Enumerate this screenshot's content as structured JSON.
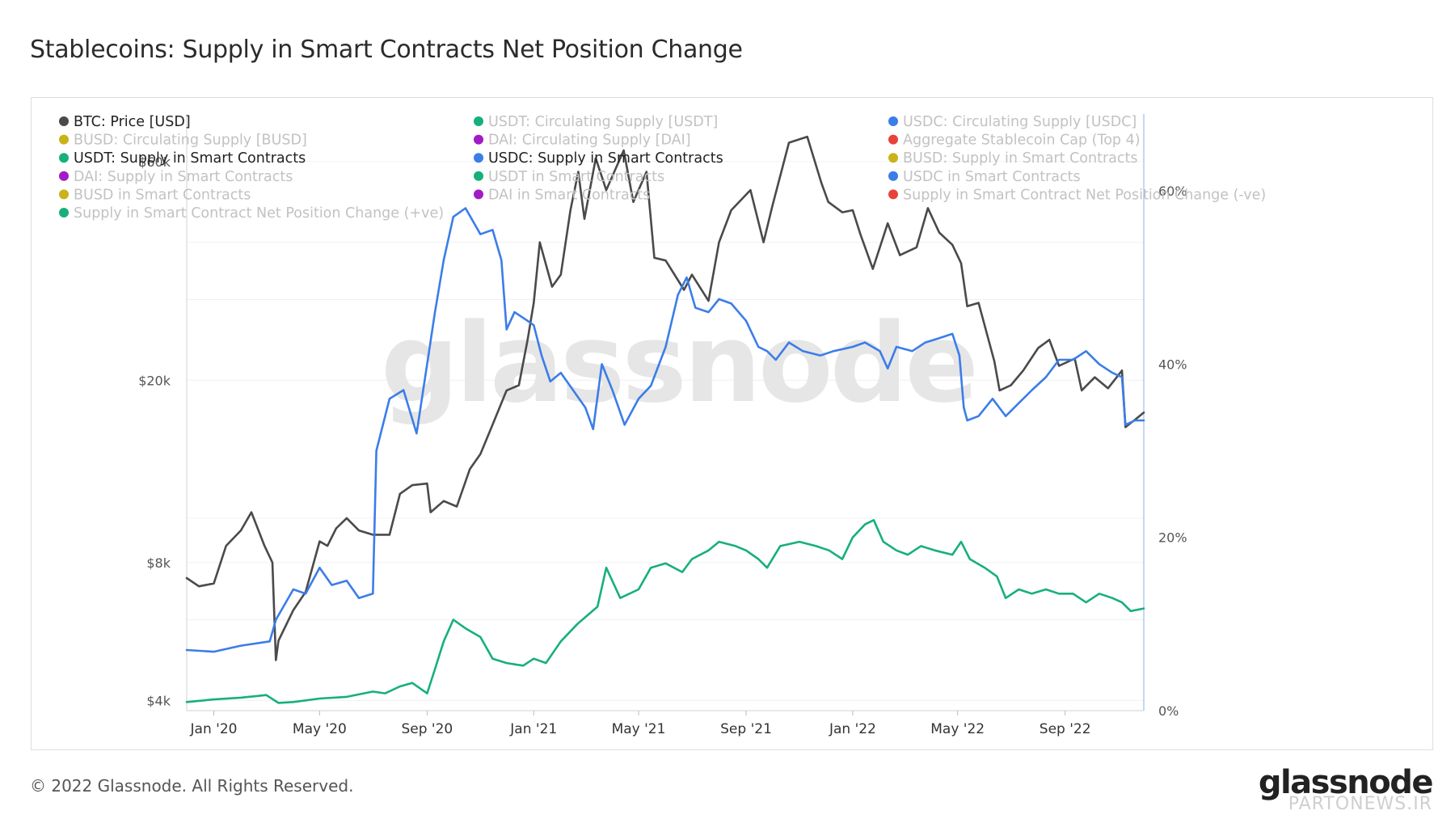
{
  "title": "Stablecoins: Supply in Smart Contracts Net Position Change",
  "footer": {
    "copyright": "© 2022 Glassnode. All Rights Reserved.",
    "logo": "glassnode",
    "credit": "PARTONEWS.IR"
  },
  "watermark": "glassnode",
  "colors": {
    "btc": "#4a4a4a",
    "usdc": "#3b7de9",
    "usdt": "#17b07a",
    "busd": "#c9b21a",
    "dai": "#a21cc4",
    "red": "#e8433a",
    "right_axis": "#8ab0f0"
  },
  "legend": [
    {
      "label": "BTC: Price [USD]",
      "color": "#4a4a4a",
      "active": true
    },
    {
      "label": "USDT: Circulating Supply [USDT]",
      "color": "#17b07a",
      "active": false
    },
    {
      "label": "USDC: Circulating Supply [USDC]",
      "color": "#3b7de9",
      "active": false
    },
    {
      "label": "BUSD: Circulating Supply [BUSD]",
      "color": "#c9b21a",
      "active": false
    },
    {
      "label": "DAI: Circulating Supply [DAI]",
      "color": "#a21cc4",
      "active": false
    },
    {
      "label": "Aggregate Stablecoin Cap (Top 4)",
      "color": "#e8433a",
      "active": false
    },
    {
      "label": "USDT: Supply in Smart Contracts",
      "color": "#17b07a",
      "active": true
    },
    {
      "label": "USDC: Supply in Smart Contracts",
      "color": "#3b7de9",
      "active": true
    },
    {
      "label": "BUSD: Supply in Smart Contracts",
      "color": "#c9b21a",
      "active": false
    },
    {
      "label": "DAI: Supply in Smart Contracts",
      "color": "#a21cc4",
      "active": false
    },
    {
      "label": "USDT in Smart Contracts",
      "color": "#17b07a",
      "active": false
    },
    {
      "label": "USDC in Smart Contracts",
      "color": "#3b7de9",
      "active": false
    },
    {
      "label": "BUSD in Smart Contracts",
      "color": "#c9b21a",
      "active": false
    },
    {
      "label": "DAI in Smart Contracts",
      "color": "#a21cc4",
      "active": false
    },
    {
      "label": "Supply in Smart Contract Net Position Change (-ve)",
      "color": "#e8433a",
      "active": false
    },
    {
      "label": "Supply in Smart Contract Net Position Change (+ve)",
      "color": "#17b07a",
      "active": false
    }
  ],
  "chart_data": {
    "type": "line",
    "x_ticks": [
      "Jan '20",
      "May '20",
      "Sep '20",
      "Jan '21",
      "May '21",
      "Sep '21",
      "Jan '22",
      "May '22",
      "Sep '22"
    ],
    "x_tick_dates": [
      "2020-01-01",
      "2020-05-01",
      "2020-09-01",
      "2021-01-01",
      "2021-05-01",
      "2021-09-01",
      "2022-01-01",
      "2022-05-01",
      "2022-09-01"
    ],
    "x_range": [
      "2019-12-01",
      "2022-11-30"
    ],
    "left_axis": {
      "scale": "log",
      "ticks": [
        4000,
        8000,
        20000,
        60000
      ],
      "tick_labels": [
        "$4k",
        "$8k",
        "$20k",
        "$60k"
      ],
      "range": [
        3800,
        75000
      ]
    },
    "right_axis": {
      "scale": "linear",
      "ticks": [
        0,
        20,
        40,
        60
      ],
      "tick_labels": [
        "0%",
        "20%",
        "40%",
        "60%"
      ],
      "range": [
        0,
        68.5
      ]
    },
    "grid": true,
    "series": [
      {
        "name": "BTC: Price [USD]",
        "axis": "left",
        "color": "#4a4a4a",
        "points": [
          [
            "2019-12-01",
            7400
          ],
          [
            "2019-12-15",
            7100
          ],
          [
            "2020-01-01",
            7200
          ],
          [
            "2020-01-15",
            8700
          ],
          [
            "2020-02-01",
            9400
          ],
          [
            "2020-02-13",
            10300
          ],
          [
            "2020-02-28",
            8700
          ],
          [
            "2020-03-08",
            8000
          ],
          [
            "2020-03-12",
            4900
          ],
          [
            "2020-03-15",
            5400
          ],
          [
            "2020-04-01",
            6300
          ],
          [
            "2020-04-15",
            6900
          ],
          [
            "2020-05-01",
            8900
          ],
          [
            "2020-05-10",
            8700
          ],
          [
            "2020-05-20",
            9500
          ],
          [
            "2020-06-01",
            10000
          ],
          [
            "2020-06-15",
            9400
          ],
          [
            "2020-07-01",
            9200
          ],
          [
            "2020-07-20",
            9200
          ],
          [
            "2020-08-01",
            11300
          ],
          [
            "2020-08-15",
            11800
          ],
          [
            "2020-09-01",
            11900
          ],
          [
            "2020-09-05",
            10300
          ],
          [
            "2020-09-20",
            10900
          ],
          [
            "2020-10-05",
            10600
          ],
          [
            "2020-10-20",
            12800
          ],
          [
            "2020-11-01",
            13800
          ],
          [
            "2020-11-15",
            16000
          ],
          [
            "2020-12-01",
            19000
          ],
          [
            "2020-12-15",
            19500
          ],
          [
            "2020-12-25",
            24500
          ],
          [
            "2021-01-01",
            29500
          ],
          [
            "2021-01-08",
            40000
          ],
          [
            "2021-01-22",
            32000
          ],
          [
            "2021-02-01",
            34000
          ],
          [
            "2021-02-12",
            47000
          ],
          [
            "2021-02-21",
            57000
          ],
          [
            "2021-02-28",
            45000
          ],
          [
            "2021-03-13",
            61000
          ],
          [
            "2021-03-25",
            52000
          ],
          [
            "2021-04-14",
            63500
          ],
          [
            "2021-04-25",
            49000
          ],
          [
            "2021-05-10",
            57000
          ],
          [
            "2021-05-19",
            37000
          ],
          [
            "2021-06-01",
            36500
          ],
          [
            "2021-06-22",
            31500
          ],
          [
            "2021-07-01",
            34000
          ],
          [
            "2021-07-20",
            29800
          ],
          [
            "2021-08-01",
            40000
          ],
          [
            "2021-08-15",
            47000
          ],
          [
            "2021-09-06",
            52000
          ],
          [
            "2021-09-21",
            40000
          ],
          [
            "2021-10-01",
            48000
          ],
          [
            "2021-10-20",
            66000
          ],
          [
            "2021-11-10",
            68000
          ],
          [
            "2021-11-26",
            54000
          ],
          [
            "2021-12-04",
            49000
          ],
          [
            "2021-12-20",
            46500
          ],
          [
            "2022-01-01",
            47000
          ],
          [
            "2022-01-10",
            41500
          ],
          [
            "2022-01-24",
            35000
          ],
          [
            "2022-02-10",
            44000
          ],
          [
            "2022-02-24",
            37500
          ],
          [
            "2022-03-15",
            39000
          ],
          [
            "2022-03-28",
            47500
          ],
          [
            "2022-04-10",
            42000
          ],
          [
            "2022-04-25",
            39500
          ],
          [
            "2022-05-05",
            36000
          ],
          [
            "2022-05-12",
            29000
          ],
          [
            "2022-05-25",
            29500
          ],
          [
            "2022-06-12",
            22000
          ],
          [
            "2022-06-18",
            19000
          ],
          [
            "2022-07-01",
            19500
          ],
          [
            "2022-07-15",
            21000
          ],
          [
            "2022-08-01",
            23500
          ],
          [
            "2022-08-14",
            24500
          ],
          [
            "2022-08-25",
            21500
          ],
          [
            "2022-09-12",
            22300
          ],
          [
            "2022-09-20",
            19000
          ],
          [
            "2022-10-05",
            20300
          ],
          [
            "2022-10-20",
            19200
          ],
          [
            "2022-11-05",
            21000
          ],
          [
            "2022-11-09",
            15800
          ],
          [
            "2022-11-20",
            16400
          ],
          [
            "2022-11-30",
            17000
          ]
        ]
      },
      {
        "name": "USDC: Supply in Smart Contracts",
        "axis": "right",
        "color": "#3b7de9",
        "points": [
          [
            "2019-12-01",
            7.0
          ],
          [
            "2020-01-01",
            6.8
          ],
          [
            "2020-02-01",
            7.5
          ],
          [
            "2020-03-05",
            8.0
          ],
          [
            "2020-03-12",
            10.5
          ],
          [
            "2020-04-01",
            14.0
          ],
          [
            "2020-04-15",
            13.5
          ],
          [
            "2020-05-01",
            16.5
          ],
          [
            "2020-05-15",
            14.5
          ],
          [
            "2020-06-01",
            15.0
          ],
          [
            "2020-06-15",
            13.0
          ],
          [
            "2020-07-01",
            13.5
          ],
          [
            "2020-07-05",
            30.0
          ],
          [
            "2020-07-20",
            36.0
          ],
          [
            "2020-08-05",
            37.0
          ],
          [
            "2020-08-20",
            32.0
          ],
          [
            "2020-09-01",
            40.0
          ],
          [
            "2020-09-10",
            46.0
          ],
          [
            "2020-09-20",
            52.0
          ],
          [
            "2020-10-01",
            57.0
          ],
          [
            "2020-10-15",
            58.0
          ],
          [
            "2020-11-01",
            55.0
          ],
          [
            "2020-11-15",
            55.5
          ],
          [
            "2020-11-25",
            52.0
          ],
          [
            "2020-12-01",
            44.0
          ],
          [
            "2020-12-10",
            46.0
          ],
          [
            "2020-12-25",
            45.0
          ],
          [
            "2021-01-01",
            44.5
          ],
          [
            "2021-01-10",
            41.0
          ],
          [
            "2021-01-20",
            38.0
          ],
          [
            "2021-02-01",
            39.0
          ],
          [
            "2021-02-15",
            37.0
          ],
          [
            "2021-03-01",
            35.0
          ],
          [
            "2021-03-10",
            32.5
          ],
          [
            "2021-03-20",
            40.0
          ],
          [
            "2021-04-01",
            37.0
          ],
          [
            "2021-04-15",
            33.0
          ],
          [
            "2021-05-01",
            36.0
          ],
          [
            "2021-05-15",
            37.5
          ],
          [
            "2021-06-01",
            42.0
          ],
          [
            "2021-06-15",
            48.0
          ],
          [
            "2021-06-25",
            50.0
          ],
          [
            "2021-07-05",
            46.5
          ],
          [
            "2021-07-20",
            46.0
          ],
          [
            "2021-08-01",
            47.5
          ],
          [
            "2021-08-15",
            47.0
          ],
          [
            "2021-09-01",
            45.0
          ],
          [
            "2021-09-15",
            42.0
          ],
          [
            "2021-09-25",
            41.5
          ],
          [
            "2021-10-05",
            40.5
          ],
          [
            "2021-10-20",
            42.5
          ],
          [
            "2021-11-05",
            41.5
          ],
          [
            "2021-11-25",
            41.0
          ],
          [
            "2021-12-10",
            41.5
          ],
          [
            "2022-01-01",
            42.0
          ],
          [
            "2022-01-15",
            42.5
          ],
          [
            "2022-02-01",
            41.5
          ],
          [
            "2022-02-10",
            39.5
          ],
          [
            "2022-02-20",
            42.0
          ],
          [
            "2022-03-10",
            41.5
          ],
          [
            "2022-03-25",
            42.5
          ],
          [
            "2022-04-10",
            43.0
          ],
          [
            "2022-04-25",
            43.5
          ],
          [
            "2022-05-03",
            41.0
          ],
          [
            "2022-05-08",
            35.0
          ],
          [
            "2022-05-12",
            33.5
          ],
          [
            "2022-05-25",
            34.0
          ],
          [
            "2022-06-10",
            36.0
          ],
          [
            "2022-06-25",
            34.0
          ],
          [
            "2022-07-10",
            35.5
          ],
          [
            "2022-07-25",
            37.0
          ],
          [
            "2022-08-10",
            38.5
          ],
          [
            "2022-08-25",
            40.5
          ],
          [
            "2022-09-10",
            40.5
          ],
          [
            "2022-09-25",
            41.5
          ],
          [
            "2022-10-10",
            40.0
          ],
          [
            "2022-10-25",
            39.0
          ],
          [
            "2022-11-05",
            38.5
          ],
          [
            "2022-11-09",
            33.0
          ],
          [
            "2022-11-20",
            33.5
          ],
          [
            "2022-11-30",
            33.5
          ]
        ]
      },
      {
        "name": "USDT: Supply in Smart Contracts",
        "axis": "right",
        "color": "#17b07a",
        "points": [
          [
            "2019-12-01",
            1.0
          ],
          [
            "2020-01-01",
            1.3
          ],
          [
            "2020-02-01",
            1.5
          ],
          [
            "2020-03-01",
            1.8
          ],
          [
            "2020-03-15",
            0.9
          ],
          [
            "2020-04-01",
            1.0
          ],
          [
            "2020-05-01",
            1.4
          ],
          [
            "2020-06-01",
            1.6
          ],
          [
            "2020-07-01",
            2.2
          ],
          [
            "2020-07-15",
            2.0
          ],
          [
            "2020-08-01",
            2.8
          ],
          [
            "2020-08-15",
            3.2
          ],
          [
            "2020-09-01",
            2.0
          ],
          [
            "2020-09-10",
            4.8
          ],
          [
            "2020-09-20",
            8.0
          ],
          [
            "2020-10-01",
            10.5
          ],
          [
            "2020-10-15",
            9.5
          ],
          [
            "2020-11-01",
            8.5
          ],
          [
            "2020-11-15",
            6.0
          ],
          [
            "2020-12-01",
            5.5
          ],
          [
            "2020-12-20",
            5.2
          ],
          [
            "2021-01-01",
            6.0
          ],
          [
            "2021-01-15",
            5.5
          ],
          [
            "2021-02-01",
            8.0
          ],
          [
            "2021-02-20",
            10.0
          ],
          [
            "2021-03-15",
            12.0
          ],
          [
            "2021-03-25",
            16.5
          ],
          [
            "2021-04-10",
            13.0
          ],
          [
            "2021-05-01",
            14.0
          ],
          [
            "2021-05-15",
            16.5
          ],
          [
            "2021-06-01",
            17.0
          ],
          [
            "2021-06-20",
            16.0
          ],
          [
            "2021-07-01",
            17.5
          ],
          [
            "2021-07-20",
            18.5
          ],
          [
            "2021-08-01",
            19.5
          ],
          [
            "2021-08-20",
            19.0
          ],
          [
            "2021-09-01",
            18.5
          ],
          [
            "2021-09-15",
            17.5
          ],
          [
            "2021-09-25",
            16.5
          ],
          [
            "2021-10-10",
            19.0
          ],
          [
            "2021-11-01",
            19.5
          ],
          [
            "2021-11-20",
            19.0
          ],
          [
            "2021-12-05",
            18.5
          ],
          [
            "2021-12-20",
            17.5
          ],
          [
            "2022-01-01",
            20.0
          ],
          [
            "2022-01-15",
            21.5
          ],
          [
            "2022-01-25",
            22.0
          ],
          [
            "2022-02-05",
            19.5
          ],
          [
            "2022-02-20",
            18.5
          ],
          [
            "2022-03-05",
            18.0
          ],
          [
            "2022-03-20",
            19.0
          ],
          [
            "2022-04-05",
            18.5
          ],
          [
            "2022-04-25",
            18.0
          ],
          [
            "2022-05-05",
            19.5
          ],
          [
            "2022-05-15",
            17.5
          ],
          [
            "2022-06-01",
            16.5
          ],
          [
            "2022-06-15",
            15.5
          ],
          [
            "2022-06-25",
            13.0
          ],
          [
            "2022-07-10",
            14.0
          ],
          [
            "2022-07-25",
            13.5
          ],
          [
            "2022-08-10",
            14.0
          ],
          [
            "2022-08-25",
            13.5
          ],
          [
            "2022-09-10",
            13.5
          ],
          [
            "2022-09-25",
            12.5
          ],
          [
            "2022-10-10",
            13.5
          ],
          [
            "2022-10-25",
            13.0
          ],
          [
            "2022-11-05",
            12.5
          ],
          [
            "2022-11-15",
            11.5
          ],
          [
            "2022-11-30",
            11.8
          ]
        ]
      }
    ]
  }
}
